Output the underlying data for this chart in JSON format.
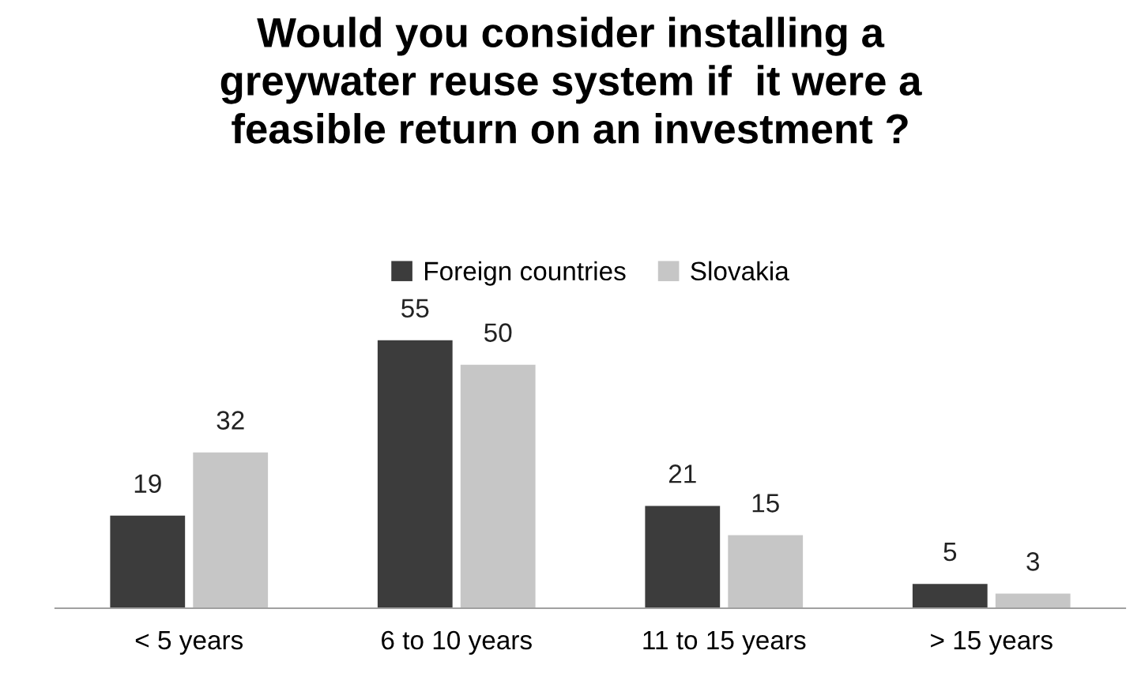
{
  "chart_data": {
    "type": "bar",
    "title": "Would you consider installing a\ngreywater reuse system if  it were a\nfeasible return on an investment ?",
    "categories": [
      "< 5 years",
      "6 to 10 years",
      "11 to 15 years",
      "> 15 years"
    ],
    "series": [
      {
        "name": "Foreign countries",
        "color": "#3c3c3c",
        "values": [
          19,
          55,
          21,
          5
        ]
      },
      {
        "name": "Slovakia",
        "color": "#c6c6c6",
        "values": [
          32,
          50,
          15,
          3
        ]
      }
    ],
    "data_labels": true,
    "legend": "top",
    "grid": false
  }
}
